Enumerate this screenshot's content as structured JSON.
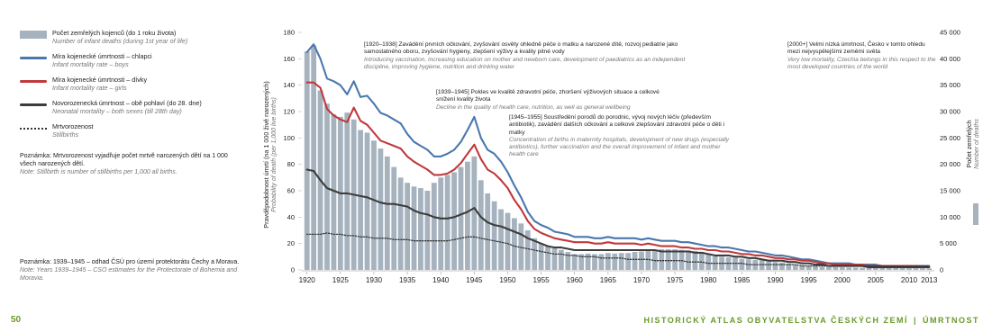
{
  "page": {
    "number": "50",
    "footer_left": "HISTORICKÝ ATLAS OBYVATELSTVA ČESKÝCH ZEMÍ",
    "footer_right": "ÚMRTNOST"
  },
  "legend": [
    {
      "key": "bars",
      "cz": "Počet zemřelých kojenců (do 1 roku života)",
      "en": "Number of infant deaths (during 1st year of life)"
    },
    {
      "key": "boys",
      "cz": "Míra kojenecké úmrtnosti – chlapci",
      "en": "Infant mortality rate – boys"
    },
    {
      "key": "girls",
      "cz": "Míra kojenecké úmrtnosti – dívky",
      "en": "Infant mortality rate – girls"
    },
    {
      "key": "neonatal",
      "cz": "Novorozenecká úmrtnost – obě pohlaví (do 28. dne)",
      "en": "Neonatal mortality – both sexes (till 28th day)"
    },
    {
      "key": "stillbirths",
      "cz": "Mrtvorozenost",
      "en": "Stillbirths"
    }
  ],
  "notes": {
    "stillbirth_cz": "Poznámka: Mrtvorozenost vyjadřuje počet mrtvě narozených dětí na 1 000 všech narozených dětí.",
    "stillbirth_en": "Note: Stillbirth is number of stillbirths per 1,000 all births.",
    "years_cz": "Poznámka: 1939–1945 – odhad ČSÚ pro území protektorátu Čechy a Morava.",
    "years_en": "Note: Years 1939–1945 – CSO estimates for the Protectorate of Bohemia and Moravia."
  },
  "annotations": [
    {
      "cz": "[1920–1938] Zavádění prvních očkování, zvyšování osvěty ohledně péče o matku a narozené dítě, rozvoj pediatrie jako samostatného oboru, zvyšování hygieny, zlepšení výživy a kvality pitné vody",
      "en": "Introducing vaccination, increasing education on mother and newborn care, development of paediatrics as an independent discipline, improving hygiene, nutrition and drinking water"
    },
    {
      "cz": "[1939–1945] Pokles ve kvalitě zdravotní péče, zhoršení výživových situace a celkové snížení kvality života",
      "en": "Decline in the quality of health care, nutrition, as well as general wellbeing"
    },
    {
      "cz": "[1945–1955] Soustředění porodů do porodnic, vývoj nových léčiv (především antibiotik), zavádění dalších očkování a celkové zlepšování zdravotní péče o děti i matky",
      "en": "Concentration of births in maternity hospitals, development of new drugs (especially antibiotics), further vaccination and the overall improvement of infant and mother health care"
    },
    {
      "cz": "[2000+] Velmi nízká úmrtnost, Česko v tomto ohledu mezi nejvyspělejšími zeměmi světa",
      "en": "Very low mortality, Czechia belongs in this respect to the most developed countries of the world"
    }
  ],
  "colors": {
    "bars": "#a6b3bf",
    "boys": "#4a78ad",
    "girls": "#c0393c",
    "neonatal": "#3c3c3c",
    "stillbirths": "#333333",
    "accent": "#6a9a2a"
  },
  "chart_data": {
    "type": "bar",
    "ylabel_left": "Pravděpodobnost úmrtí (na 1 000 živě narozených)",
    "ylabel_left_en": "Probability of death (per 1,000 live births)",
    "ylabel_right": "Počet zemřelých",
    "ylabel_right_en": "Number of deaths",
    "ylim_left": [
      0,
      180
    ],
    "ylim_right": [
      0,
      45000
    ],
    "yticks_left": [
      "0",
      "20",
      "40",
      "60",
      "80",
      "100",
      "120",
      "140",
      "160",
      "180"
    ],
    "yticks_right": [
      "0",
      "5 000",
      "10 000",
      "15 000",
      "20 000",
      "25 000",
      "30 000",
      "35 000",
      "40 000",
      "45 000"
    ],
    "xticks": [
      "1920",
      "1925",
      "1930",
      "1935",
      "1940",
      "1945",
      "1950",
      "1955",
      "1960",
      "1965",
      "1970",
      "1975",
      "1980",
      "1985",
      "1990",
      "1995",
      "2000",
      "2005",
      "2010",
      "2013"
    ],
    "years": [
      1920,
      1921,
      1922,
      1923,
      1924,
      1925,
      1926,
      1927,
      1928,
      1929,
      1930,
      1931,
      1932,
      1933,
      1934,
      1935,
      1936,
      1937,
      1938,
      1939,
      1940,
      1941,
      1942,
      1943,
      1944,
      1945,
      1946,
      1947,
      1948,
      1949,
      1950,
      1951,
      1952,
      1953,
      1954,
      1955,
      1956,
      1957,
      1958,
      1959,
      1960,
      1961,
      1962,
      1963,
      1964,
      1965,
      1966,
      1967,
      1968,
      1969,
      1970,
      1971,
      1972,
      1973,
      1974,
      1975,
      1976,
      1977,
      1978,
      1979,
      1980,
      1981,
      1982,
      1983,
      1984,
      1985,
      1986,
      1987,
      1988,
      1989,
      1990,
      1991,
      1992,
      1993,
      1994,
      1995,
      1996,
      1997,
      1998,
      1999,
      2000,
      2001,
      2002,
      2003,
      2004,
      2005,
      2006,
      2007,
      2008,
      2009,
      2010,
      2011,
      2012,
      2013
    ],
    "series": [
      {
        "name": "Počet zemřelých kojenců (do 1 roku života)",
        "type": "bar",
        "axis": "right",
        "values": [
          41400,
          42500,
          34000,
          31500,
          29500,
          29000,
          29800,
          28500,
          26500,
          26000,
          24500,
          23000,
          21500,
          19500,
          17500,
          16500,
          15800,
          15500,
          15000,
          16500,
          17500,
          18000,
          18500,
          19500,
          20500,
          21500,
          17000,
          14500,
          13000,
          11500,
          10800,
          9800,
          8800,
          7500,
          6000,
          5000,
          4500,
          4100,
          3800,
          3400,
          3000,
          3000,
          3100,
          3000,
          3000,
          3200,
          3100,
          3200,
          3200,
          3400,
          3500,
          3700,
          3800,
          3900,
          3900,
          3900,
          3800,
          3700,
          3600,
          3400,
          3000,
          2600,
          2500,
          2400,
          2300,
          2100,
          2000,
          1900,
          1900,
          1600,
          1500,
          1400,
          1200,
          1000,
          900,
          800,
          700,
          600,
          550,
          520,
          500,
          470,
          440,
          420,
          380,
          330,
          310,
          300,
          310,
          300,
          300,
          300,
          280,
          270
        ]
      },
      {
        "name": "Míra kojenecké úmrtnosti – chlapci",
        "type": "line",
        "axis": "left",
        "values": [
          165,
          171,
          160,
          145,
          143,
          140,
          133,
          143,
          131,
          132,
          126,
          119,
          117,
          114,
          111,
          103,
          97,
          94,
          91,
          86,
          86,
          88,
          91,
          97,
          106,
          116,
          100,
          91,
          88,
          82,
          74,
          64,
          55,
          44,
          37,
          34,
          32,
          29,
          28,
          27,
          25,
          25,
          25,
          24,
          24,
          25,
          24,
          24,
          24,
          24,
          23,
          24,
          23,
          22,
          22,
          22,
          21,
          21,
          20,
          19,
          18,
          18,
          17,
          17,
          16,
          15,
          14,
          14,
          13,
          12,
          11,
          11,
          10,
          9,
          8,
          8,
          7,
          6,
          5,
          5,
          5,
          5,
          4,
          4,
          4,
          4,
          3,
          3,
          3,
          3,
          3,
          3,
          3,
          3
        ]
      },
      {
        "name": "Míra kojenecké úmrtnosti – dívky",
        "type": "line",
        "axis": "left",
        "values": [
          142,
          142,
          138,
          122,
          117,
          114,
          112,
          123,
          113,
          110,
          104,
          98,
          96,
          94,
          92,
          86,
          82,
          79,
          76,
          72,
          72,
          73,
          76,
          81,
          88,
          95,
          84,
          76,
          73,
          68,
          62,
          53,
          46,
          37,
          31,
          28,
          26,
          24,
          23,
          22,
          21,
          21,
          21,
          20,
          20,
          21,
          20,
          20,
          20,
          20,
          19,
          20,
          19,
          18,
          18,
          18,
          17,
          17,
          16,
          16,
          15,
          15,
          14,
          14,
          13,
          12,
          12,
          11,
          11,
          10,
          9,
          9,
          8,
          8,
          7,
          7,
          6,
          5,
          5,
          4,
          4,
          4,
          4,
          4,
          3,
          3,
          3,
          3,
          3,
          3,
          3,
          3,
          2.5,
          2.5
        ]
      },
      {
        "name": "Novorozenecká úmrtnost – obě pohlaví (do 28. dne)",
        "type": "line",
        "axis": "left",
        "values": [
          76,
          75,
          68,
          62,
          60,
          58,
          58,
          57,
          56,
          55,
          53,
          51,
          50,
          50,
          49,
          48,
          45,
          43,
          42,
          40,
          39,
          39,
          40,
          42,
          44,
          47,
          40,
          36,
          34,
          33,
          31,
          29,
          27,
          24,
          22,
          20,
          18,
          17,
          17,
          16,
          15,
          15,
          15,
          15,
          15,
          15,
          15,
          15,
          15,
          15,
          15,
          15,
          15,
          14,
          14,
          14,
          14,
          14,
          13,
          13,
          12,
          11,
          11,
          11,
          10,
          10,
          9,
          9,
          8,
          7,
          7,
          7,
          6,
          6,
          5,
          5,
          4,
          4,
          3,
          3,
          3,
          3,
          3,
          3,
          2,
          2,
          2,
          2,
          2,
          2,
          2,
          2,
          2,
          2
        ]
      },
      {
        "name": "Mrtvorozenost",
        "type": "line",
        "axis": "left",
        "values": [
          27,
          27,
          27,
          28,
          27,
          27,
          26,
          26,
          25,
          25,
          24,
          24,
          24,
          23,
          23,
          23,
          22,
          22,
          22,
          22,
          22,
          22,
          23,
          24,
          25,
          25,
          24,
          23,
          22,
          21,
          20,
          18,
          17,
          16,
          15,
          14,
          13,
          12,
          12,
          11,
          11,
          10,
          10,
          10,
          9,
          9,
          9,
          9,
          8,
          8,
          8,
          8,
          7,
          7,
          7,
          7,
          7,
          6,
          6,
          6,
          5,
          5,
          5,
          5,
          5,
          5,
          4,
          4,
          4,
          4,
          4,
          4,
          4,
          4,
          3,
          3,
          3,
          3,
          3,
          3,
          3,
          3,
          3,
          3,
          3,
          3,
          3,
          3,
          3,
          3,
          3,
          3,
          3,
          3
        ]
      }
    ]
  }
}
